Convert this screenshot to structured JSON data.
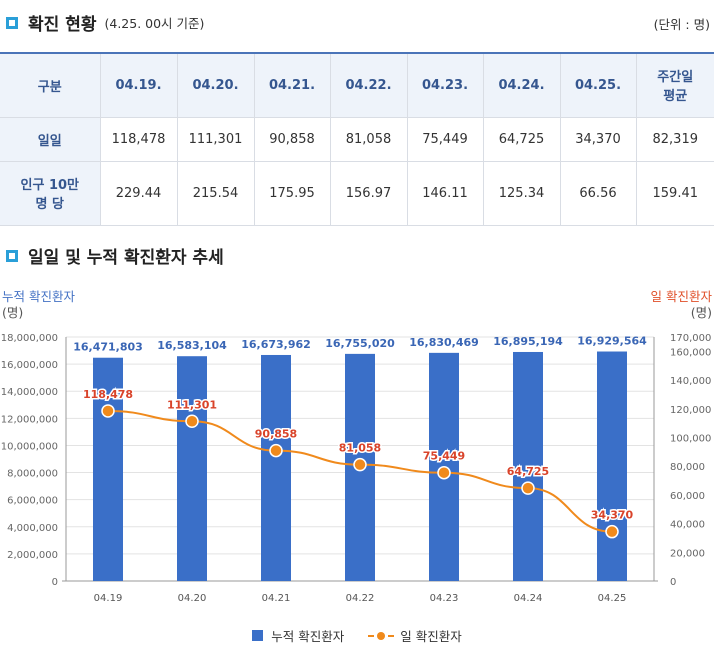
{
  "section1": {
    "title": "확진 현황",
    "subtitle": "(4.25. 00시 기준)",
    "unit": "(단위 : 명)"
  },
  "table": {
    "corner": "구분",
    "columns": [
      "04.19.",
      "04.20.",
      "04.21.",
      "04.22.",
      "04.23.",
      "04.24.",
      "04.25.",
      "주간일\n평균"
    ],
    "rows": [
      {
        "label": "일일",
        "values": [
          "118,478",
          "111,301",
          "90,858",
          "81,058",
          "75,449",
          "64,725",
          "34,370",
          "82,319"
        ]
      },
      {
        "label": "인구 10만\n명 당",
        "values": [
          "229.44",
          "215.54",
          "175.95",
          "156.97",
          "146.11",
          "125.34",
          "66.56",
          "159.41"
        ]
      }
    ]
  },
  "section2": {
    "title": "일일 및 누적 확진환자 추세"
  },
  "chart_data": {
    "type": "bar",
    "categories": [
      "04.19",
      "04.20",
      "04.21",
      "04.22",
      "04.23",
      "04.24",
      "04.25"
    ],
    "series": [
      {
        "name": "누적 확진환자",
        "type": "bar",
        "axis": "left",
        "color": "#3a6fc8",
        "values": [
          16471803,
          16583104,
          16673962,
          16755020,
          16830469,
          16895194,
          16929564
        ]
      },
      {
        "name": "일 확진환자",
        "type": "line",
        "axis": "right",
        "color": "#f08a1c",
        "values": [
          118478,
          111301,
          90858,
          81058,
          75449,
          64725,
          34370
        ]
      }
    ],
    "left_axis": {
      "label": "누적 확진환자",
      "unit": "(명)",
      "ylim": [
        0,
        18000000
      ],
      "ticks": [
        0,
        2000000,
        4000000,
        6000000,
        8000000,
        10000000,
        12000000,
        14000000,
        16000000,
        18000000
      ],
      "tick_labels": [
        "0",
        "2,000,000",
        "4,000,000",
        "6,000,000",
        "8,000,000",
        "10,000,000",
        "12,000,000",
        "14,000,000",
        "16,000,000",
        "18,000,000"
      ]
    },
    "right_axis": {
      "label": "일 확진환자",
      "unit": "(명)",
      "ylim": [
        0,
        170000
      ],
      "ticks": [
        0,
        20000,
        40000,
        60000,
        80000,
        100000,
        120000,
        140000,
        160000,
        170000
      ],
      "tick_labels": [
        "0",
        "20,000",
        "40,000",
        "60,000",
        "80,000",
        "100,000",
        "120,000",
        "140,000",
        "160,000",
        "170,000"
      ]
    },
    "bar_labels": [
      "16,471,803",
      "16,583,104",
      "16,673,962",
      "16,755,020",
      "16,830,469",
      "16,895,194",
      "16,929,564"
    ],
    "line_labels": [
      "118,478",
      "111,301",
      "90,858",
      "81,058",
      "75,449",
      "64,725",
      "34,370"
    ],
    "grid": true,
    "legend_position": "bottom"
  }
}
